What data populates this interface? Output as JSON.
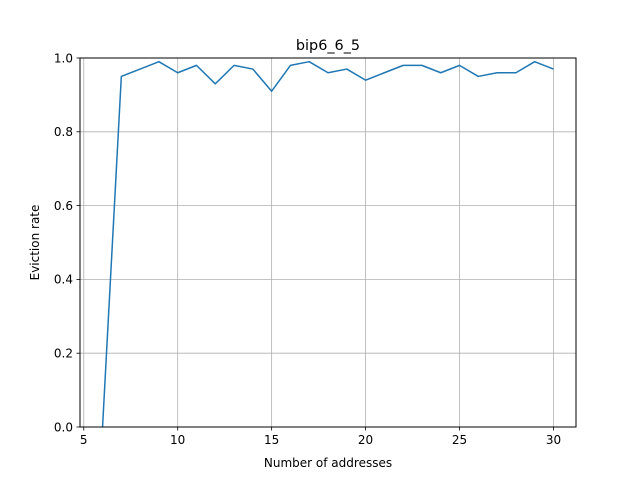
{
  "chart_data": {
    "type": "line",
    "title": "bip6_6_5",
    "xlabel": "Number of addresses",
    "ylabel": "Eviction rate",
    "xlim": [
      4.8,
      31.2
    ],
    "ylim": [
      0.0,
      1.0
    ],
    "xticks": [
      5,
      10,
      15,
      20,
      25,
      30
    ],
    "xtick_labels": [
      "5",
      "10",
      "15",
      "20",
      "25",
      "30"
    ],
    "yticks": [
      0.0,
      0.2,
      0.4,
      0.6,
      0.8,
      1.0
    ],
    "ytick_labels": [
      "0.0",
      "0.2",
      "0.4",
      "0.6",
      "0.8",
      "1.0"
    ],
    "grid": true,
    "series": [
      {
        "color": "#1f77b4",
        "x": [
          6,
          7,
          8,
          9,
          10,
          11,
          12,
          13,
          14,
          15,
          16,
          17,
          18,
          19,
          20,
          21,
          22,
          23,
          24,
          25,
          26,
          27,
          28,
          29,
          30
        ],
        "y": [
          0.0,
          0.95,
          0.97,
          0.99,
          0.96,
          0.98,
          0.93,
          0.98,
          0.97,
          0.91,
          0.98,
          0.99,
          0.96,
          0.97,
          0.94,
          0.96,
          0.98,
          0.98,
          0.96,
          0.98,
          0.95,
          0.96,
          0.96,
          0.99,
          0.97
        ]
      }
    ]
  }
}
